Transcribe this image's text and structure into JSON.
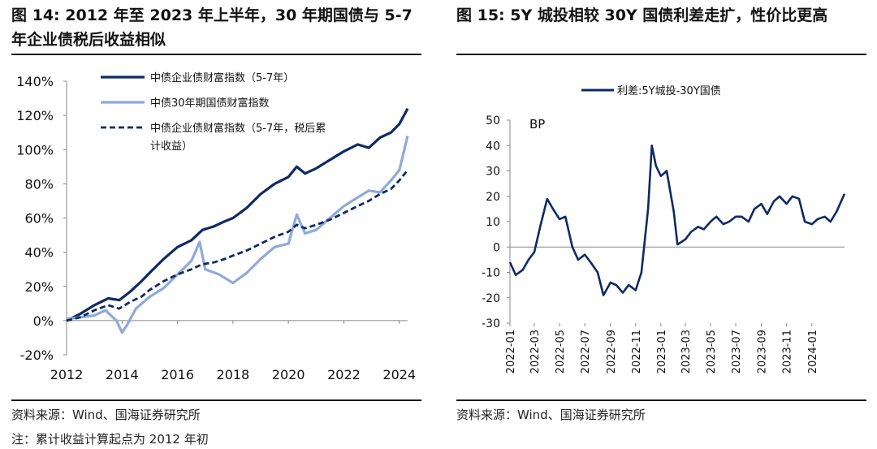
{
  "left": {
    "title": "图  14: 2012 年至 2023 年上半年，30 年期国债与 5-7 年企业债税后收益相似",
    "source": "资料来源：Wind、国海证券研究所",
    "note": "注：累计收益计算起点为 2012 年初"
  },
  "right": {
    "title": "图  15:  5Y 城投相较 30Y 国债利差走扩，性价比更高",
    "source": "资料来源：Wind、国海证券研究所"
  },
  "colors": {
    "dark_navy": "#0e2a63",
    "light_blue": "#8fa9d9",
    "rule": "#1a1a1a"
  },
  "chart_data": [
    {
      "type": "line",
      "x_axis": "year",
      "xlim": [
        2012,
        2024.3
      ],
      "ylim": [
        -0.2,
        1.4
      ],
      "x_ticks": [
        2012,
        2014,
        2016,
        2018,
        2020,
        2022,
        2024
      ],
      "y_ticks": [
        -0.2,
        0,
        0.2,
        0.4,
        0.6,
        0.8,
        1.0,
        1.2,
        1.4
      ],
      "y_tick_labels": [
        "-20%",
        "0%",
        "20%",
        "40%",
        "60%",
        "80%",
        "100%",
        "120%",
        "140%"
      ],
      "legend_position": "top-left",
      "series": [
        {
          "name": "中债企业债财富指数（5-7年）",
          "style": "solid-dark",
          "points": [
            [
              2012,
              0.0
            ],
            [
              2012.5,
              0.04
            ],
            [
              2013,
              0.09
            ],
            [
              2013.5,
              0.13
            ],
            [
              2013.9,
              0.12
            ],
            [
              2014.3,
              0.17
            ],
            [
              2014.7,
              0.23
            ],
            [
              2015,
              0.28
            ],
            [
              2015.5,
              0.36
            ],
            [
              2016,
              0.43
            ],
            [
              2016.5,
              0.47
            ],
            [
              2016.9,
              0.53
            ],
            [
              2017.3,
              0.55
            ],
            [
              2017.7,
              0.58
            ],
            [
              2018,
              0.6
            ],
            [
              2018.5,
              0.66
            ],
            [
              2019,
              0.74
            ],
            [
              2019.5,
              0.8
            ],
            [
              2020,
              0.84
            ],
            [
              2020.3,
              0.9
            ],
            [
              2020.6,
              0.86
            ],
            [
              2021,
              0.89
            ],
            [
              2021.5,
              0.94
            ],
            [
              2022,
              0.99
            ],
            [
              2022.5,
              1.03
            ],
            [
              2022.9,
              1.01
            ],
            [
              2023.3,
              1.07
            ],
            [
              2023.7,
              1.1
            ],
            [
              2024,
              1.15
            ],
            [
              2024.3,
              1.24
            ]
          ]
        },
        {
          "name": "中债30年期国债财富指数",
          "style": "solid-light",
          "points": [
            [
              2012,
              0.01
            ],
            [
              2012.5,
              0.02
            ],
            [
              2013,
              0.03
            ],
            [
              2013.4,
              0.06
            ],
            [
              2013.8,
              0.0
            ],
            [
              2014,
              -0.07
            ],
            [
              2014.2,
              -0.02
            ],
            [
              2014.5,
              0.07
            ],
            [
              2015,
              0.14
            ],
            [
              2015.5,
              0.19
            ],
            [
              2016,
              0.27
            ],
            [
              2016.5,
              0.35
            ],
            [
              2016.8,
              0.46
            ],
            [
              2017,
              0.3
            ],
            [
              2017.5,
              0.27
            ],
            [
              2018,
              0.22
            ],
            [
              2018.5,
              0.28
            ],
            [
              2019,
              0.36
            ],
            [
              2019.5,
              0.43
            ],
            [
              2020,
              0.45
            ],
            [
              2020.3,
              0.62
            ],
            [
              2020.6,
              0.51
            ],
            [
              2021,
              0.53
            ],
            [
              2021.5,
              0.6
            ],
            [
              2022,
              0.67
            ],
            [
              2022.5,
              0.72
            ],
            [
              2022.9,
              0.76
            ],
            [
              2023.3,
              0.75
            ],
            [
              2023.7,
              0.82
            ],
            [
              2024,
              0.88
            ],
            [
              2024.3,
              1.08
            ]
          ]
        },
        {
          "name": "中债企业债财富指数（5-7年，税后累计收益）",
          "style": "dashed-dark",
          "points": [
            [
              2012,
              0.0
            ],
            [
              2012.5,
              0.02
            ],
            [
              2013,
              0.06
            ],
            [
              2013.5,
              0.09
            ],
            [
              2013.9,
              0.07
            ],
            [
              2014.3,
              0.11
            ],
            [
              2014.7,
              0.14
            ],
            [
              2015,
              0.18
            ],
            [
              2015.5,
              0.23
            ],
            [
              2016,
              0.27
            ],
            [
              2016.5,
              0.3
            ],
            [
              2016.9,
              0.33
            ],
            [
              2017.3,
              0.34
            ],
            [
              2017.7,
              0.36
            ],
            [
              2018,
              0.38
            ],
            [
              2018.5,
              0.41
            ],
            [
              2019,
              0.45
            ],
            [
              2019.5,
              0.49
            ],
            [
              2020,
              0.52
            ],
            [
              2020.3,
              0.56
            ],
            [
              2020.6,
              0.54
            ],
            [
              2021,
              0.56
            ],
            [
              2021.5,
              0.59
            ],
            [
              2022,
              0.63
            ],
            [
              2022.5,
              0.67
            ],
            [
              2022.9,
              0.7
            ],
            [
              2023.3,
              0.74
            ],
            [
              2023.7,
              0.77
            ],
            [
              2024,
              0.82
            ],
            [
              2024.3,
              0.88
            ]
          ]
        }
      ]
    },
    {
      "type": "line",
      "ylabel": "BP",
      "ylim": [
        -30,
        50
      ],
      "y_ticks": [
        -30,
        -20,
        -10,
        0,
        10,
        20,
        30,
        40,
        50
      ],
      "x_ticks": [
        "2022-01",
        "2022-03",
        "2022-05",
        "2022-07",
        "2022-09",
        "2022-11",
        "2023-01",
        "2023-03",
        "2023-05",
        "2023-07",
        "2023-09",
        "2023-11",
        "2024-01"
      ],
      "xlim": [
        "2022-01-01",
        "2024-03-20"
      ],
      "legend_position": "top",
      "series": [
        {
          "name": "利差:5Y城投-30Y国债",
          "points": [
            [
              "2022-01-01",
              -6
            ],
            [
              "2022-01-15",
              -11
            ],
            [
              "2022-02-01",
              -9
            ],
            [
              "2022-02-15",
              -5
            ],
            [
              "2022-03-01",
              -2
            ],
            [
              "2022-03-15",
              8
            ],
            [
              "2022-04-01",
              19
            ],
            [
              "2022-04-15",
              15
            ],
            [
              "2022-05-01",
              11
            ],
            [
              "2022-05-15",
              12
            ],
            [
              "2022-06-01",
              0
            ],
            [
              "2022-06-15",
              -5
            ],
            [
              "2022-07-01",
              -3
            ],
            [
              "2022-07-15",
              -6
            ],
            [
              "2022-08-01",
              -10
            ],
            [
              "2022-08-15",
              -19
            ],
            [
              "2022-09-01",
              -14
            ],
            [
              "2022-09-15",
              -15
            ],
            [
              "2022-10-01",
              -18
            ],
            [
              "2022-10-15",
              -15
            ],
            [
              "2022-11-01",
              -17
            ],
            [
              "2022-11-15",
              -10
            ],
            [
              "2022-12-01",
              15
            ],
            [
              "2022-12-10",
              40
            ],
            [
              "2022-12-20",
              32
            ],
            [
              "2023-01-01",
              28
            ],
            [
              "2023-01-15",
              30
            ],
            [
              "2023-02-01",
              14
            ],
            [
              "2023-02-10",
              1
            ],
            [
              "2023-03-01",
              3
            ],
            [
              "2023-03-15",
              6
            ],
            [
              "2023-04-01",
              8
            ],
            [
              "2023-04-15",
              7
            ],
            [
              "2023-05-01",
              10
            ],
            [
              "2023-05-15",
              12
            ],
            [
              "2023-06-01",
              9
            ],
            [
              "2023-06-15",
              10
            ],
            [
              "2023-07-01",
              12
            ],
            [
              "2023-07-15",
              12
            ],
            [
              "2023-08-01",
              10
            ],
            [
              "2023-08-15",
              15
            ],
            [
              "2023-09-01",
              17
            ],
            [
              "2023-09-15",
              13
            ],
            [
              "2023-10-01",
              18
            ],
            [
              "2023-10-15",
              20
            ],
            [
              "2023-11-01",
              17
            ],
            [
              "2023-11-15",
              20
            ],
            [
              "2023-12-01",
              19
            ],
            [
              "2023-12-15",
              10
            ],
            [
              "2024-01-01",
              9
            ],
            [
              "2024-01-15",
              11
            ],
            [
              "2024-02-01",
              12
            ],
            [
              "2024-02-15",
              10
            ],
            [
              "2024-03-01",
              14
            ],
            [
              "2024-03-20",
              21
            ]
          ]
        }
      ]
    }
  ]
}
